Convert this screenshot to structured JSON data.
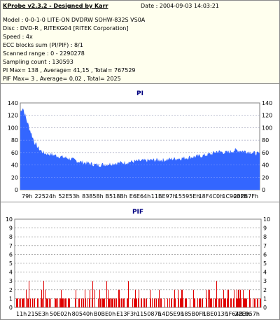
{
  "info": {
    "title": "KProbe v2.3.2 - Designed by Karr",
    "date": "Date : 2004-09-03 14:03:21",
    "model": "Model : 0-0-1-0 LITE-ON DVDRW SOHW-832S  VS0A",
    "disc": "Disc : DVD-R , RITEKG04 [RiTEK Corporation]",
    "speed": "Speed : 4x",
    "ecc": "ECC blocks sum (PI/PIF) : 8/1",
    "scanned": "Scanned range : 0 - 2290278",
    "sampling": "Sampling count : 130593",
    "pi_stats": "PI Max= 138 , Average= 41,15 , Total= 767529",
    "pif_stats": "PIF Max= 3 , Average= 0,02 , Total= 2025"
  },
  "chart_data": [
    {
      "type": "area",
      "title": "PI",
      "fill_color": "#3366ff",
      "grid_color": "#808080",
      "ylim": [
        0,
        140
      ],
      "yticks": [
        "0",
        "20",
        "40",
        "60",
        "80",
        "100",
        "120",
        "140"
      ],
      "xticks": [
        "79h",
        "22524h",
        "52E53h",
        "83858h",
        "B518Bh",
        "E6E64h",
        "11BE97h",
        "15595Eh",
        "18F4C0h",
        "1C903Fh",
        "202B7Fh"
      ],
      "x_fraction": [
        0,
        0.01,
        0.02,
        0.03,
        0.045,
        0.06,
        0.08,
        0.1,
        0.13,
        0.16,
        0.2,
        0.24,
        0.28,
        0.32,
        0.36,
        0.4,
        0.44,
        0.48,
        0.52,
        0.56,
        0.6,
        0.64,
        0.68,
        0.72,
        0.76,
        0.8,
        0.82,
        0.84,
        0.86,
        0.88,
        0.9,
        0.92,
        0.94,
        0.96,
        0.98,
        1.0
      ],
      "values": [
        125,
        134,
        120,
        108,
        92,
        76,
        65,
        59,
        57,
        54,
        51,
        46,
        43,
        40,
        41,
        43,
        44,
        46,
        47,
        48,
        48,
        50,
        51,
        53,
        55,
        58,
        62,
        61,
        60,
        62,
        64,
        63,
        62,
        61,
        59,
        58
      ]
    },
    {
      "type": "bar",
      "title": "PIF",
      "bar_color": "#e00000",
      "grid_color": "#808080",
      "ylim": [
        0,
        10
      ],
      "yticks": [
        "0",
        "1",
        "2",
        "3",
        "4",
        "5",
        "6",
        "7",
        "8",
        "9",
        "10"
      ],
      "xticks": [
        "11h",
        "215E3h",
        "50E02h",
        "80540h",
        "B0BE0h",
        "E13F3h",
        "115087h",
        "14D5E9h",
        "185B0Fh",
        "1BE013h",
        "1F64B3h",
        "22E957h"
      ],
      "max_value": 3
    }
  ]
}
